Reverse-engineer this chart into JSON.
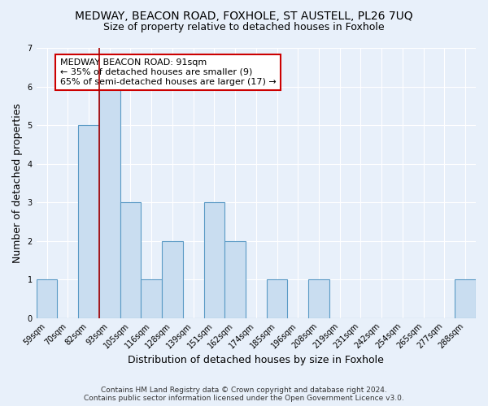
{
  "title": "MEDWAY, BEACON ROAD, FOXHOLE, ST AUSTELL, PL26 7UQ",
  "subtitle": "Size of property relative to detached houses in Foxhole",
  "xlabel": "Distribution of detached houses by size in Foxhole",
  "ylabel": "Number of detached properties",
  "categories": [
    "59sqm",
    "70sqm",
    "82sqm",
    "93sqm",
    "105sqm",
    "116sqm",
    "128sqm",
    "139sqm",
    "151sqm",
    "162sqm",
    "174sqm",
    "185sqm",
    "196sqm",
    "208sqm",
    "219sqm",
    "231sqm",
    "242sqm",
    "254sqm",
    "265sqm",
    "277sqm",
    "288sqm"
  ],
  "values": [
    1,
    0,
    5,
    6,
    3,
    1,
    2,
    0,
    3,
    2,
    0,
    1,
    0,
    1,
    0,
    0,
    0,
    0,
    0,
    0,
    1
  ],
  "bar_color": "#c9ddf0",
  "bar_edge_color": "#5a9ac5",
  "bar_edge_width": 0.8,
  "ylim": [
    0,
    7
  ],
  "yticks": [
    0,
    1,
    2,
    3,
    4,
    5,
    6,
    7
  ],
  "red_line_color": "#aa0000",
  "annotation_line1": "MEDWAY BEACON ROAD: 91sqm",
  "annotation_line2": "← 35% of detached houses are smaller (9)",
  "annotation_line3": "65% of semi-detached houses are larger (17) →",
  "annotation_box_color": "#ffffff",
  "annotation_box_edge": "#cc0000",
  "footer_line1": "Contains HM Land Registry data © Crown copyright and database right 2024.",
  "footer_line2": "Contains public sector information licensed under the Open Government Licence v3.0.",
  "background_color": "#e8f0fa",
  "grid_color": "#ffffff",
  "title_fontsize": 10,
  "subtitle_fontsize": 9,
  "axis_label_fontsize": 9,
  "tick_fontsize": 7,
  "annotation_fontsize": 8,
  "footer_fontsize": 6.5
}
